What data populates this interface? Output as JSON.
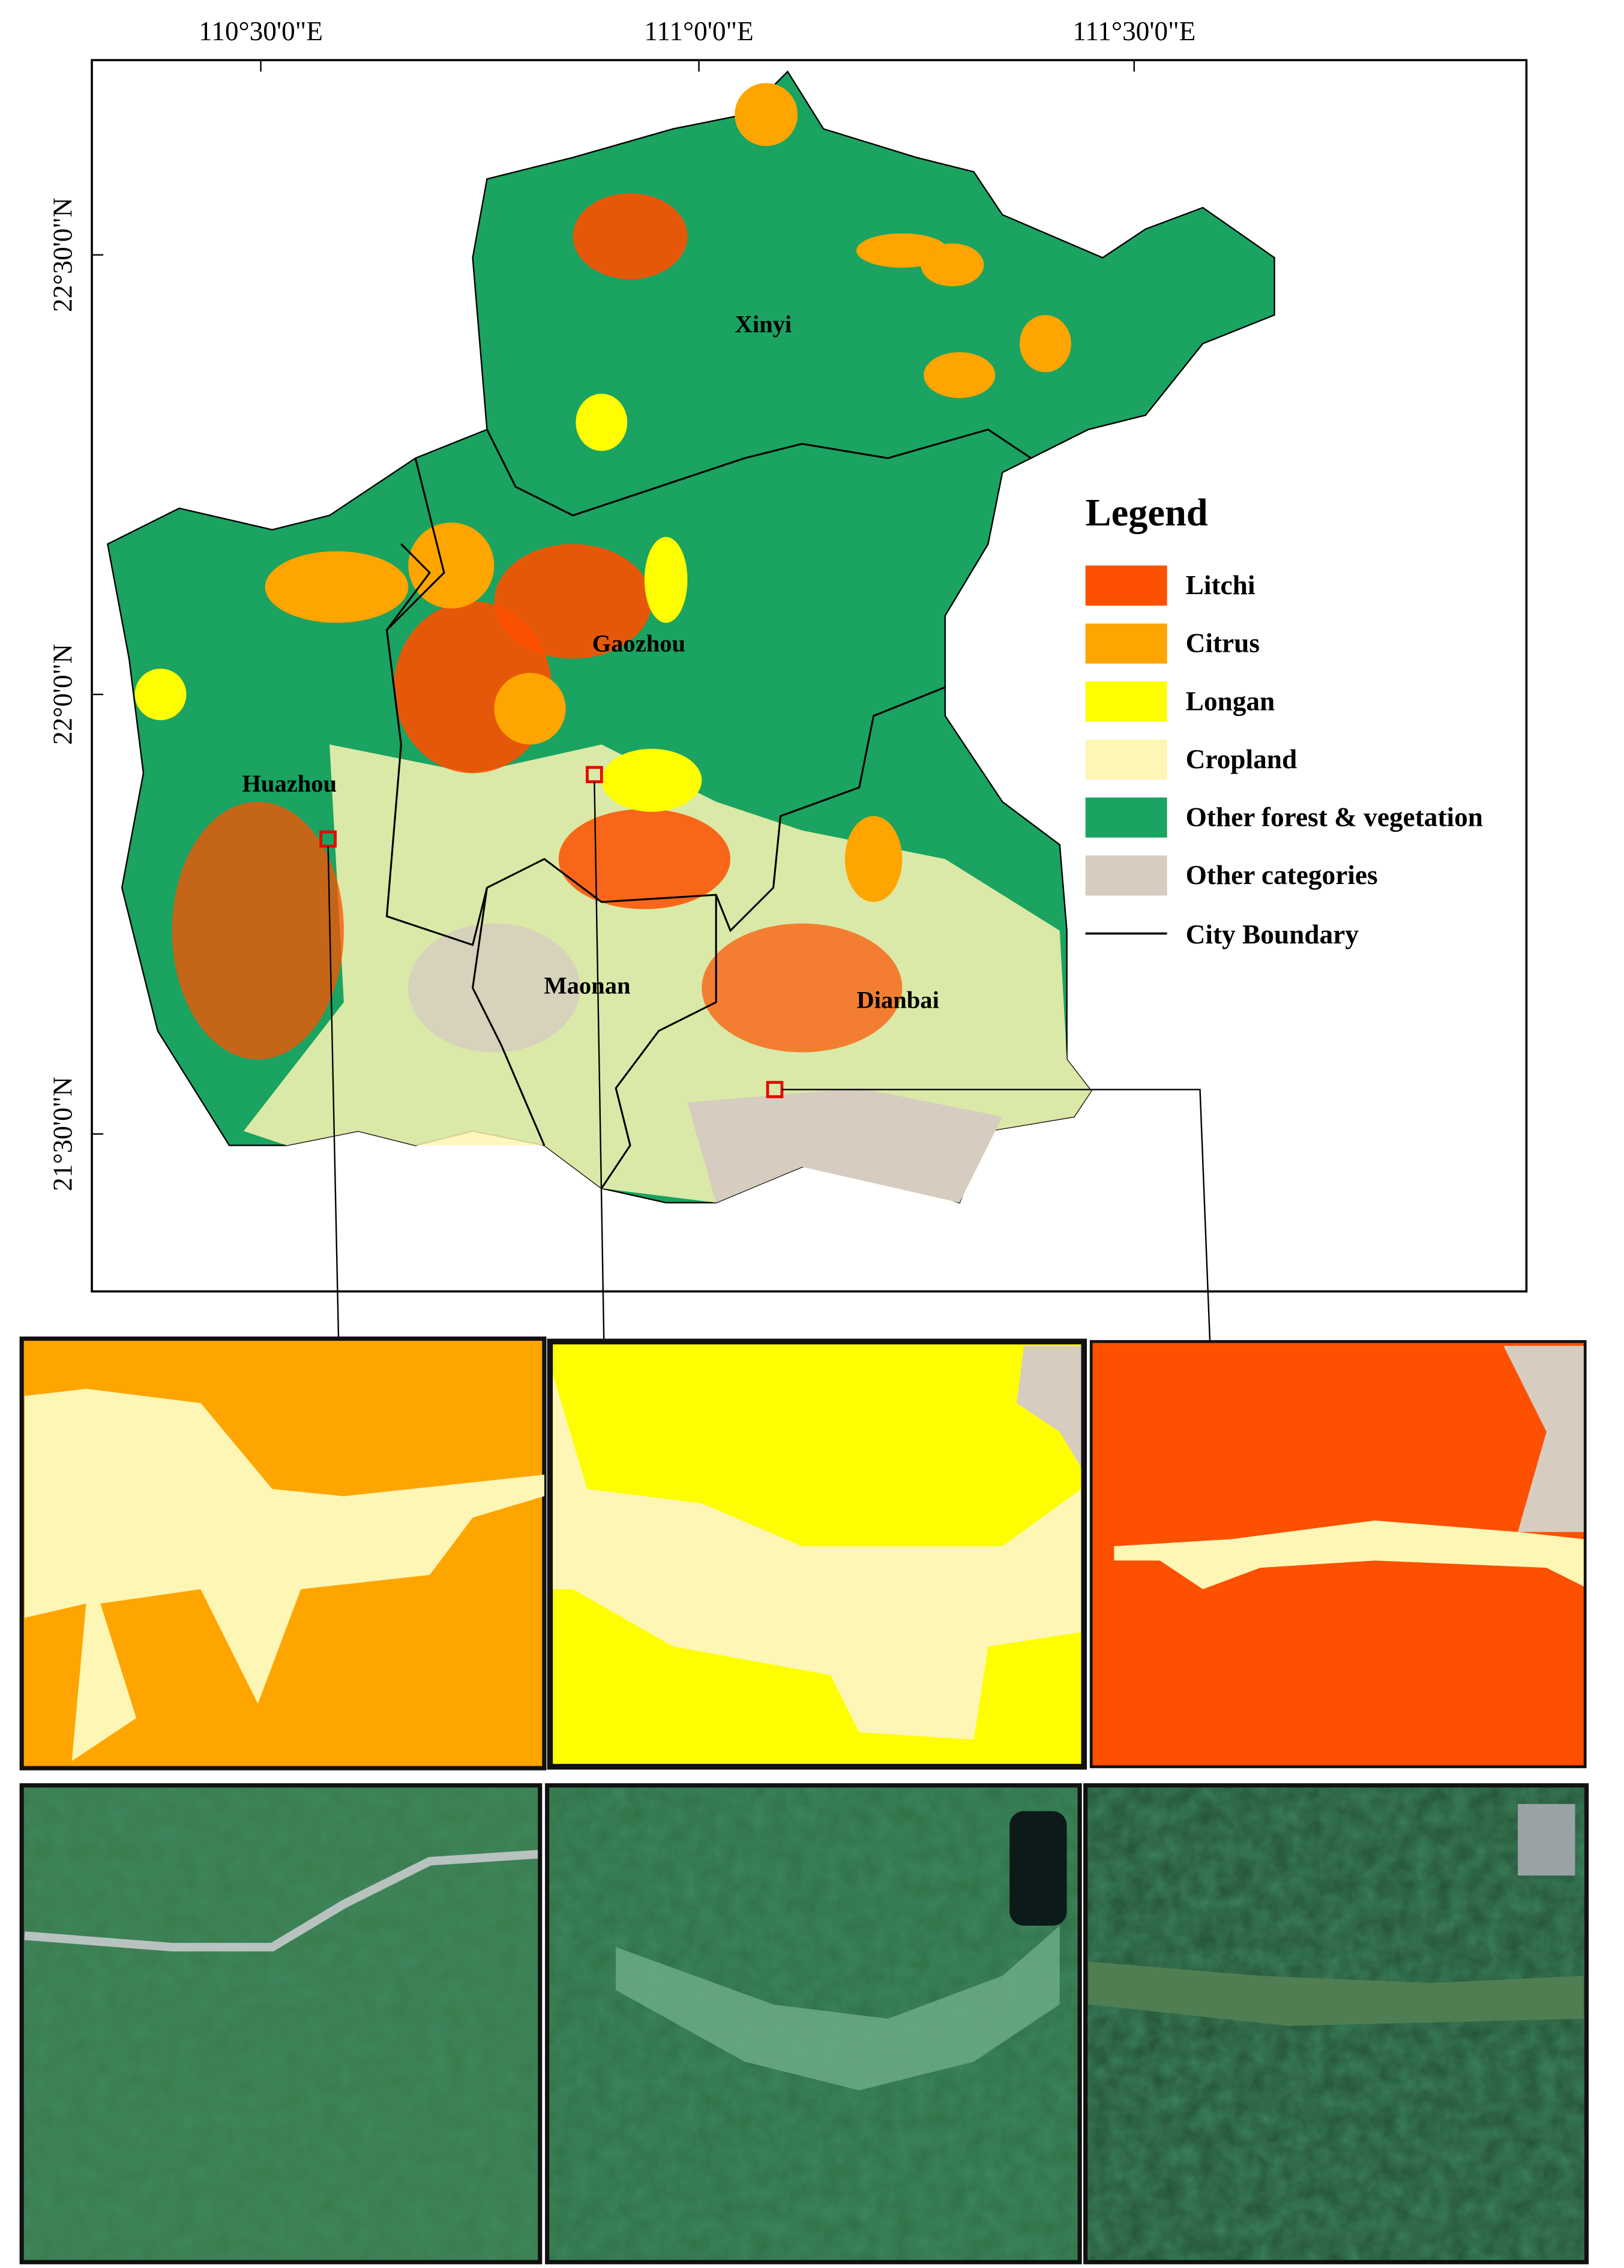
{
  "map": {
    "lon_labels": [
      "110°30'0\"E",
      "111°0'0\"E",
      "111°30'0\"E"
    ],
    "lat_labels": [
      "22°30'0\"N",
      "22°0'0\"N",
      "21°30'0\"N"
    ],
    "cities": [
      "Xinyi",
      "Gaozhou",
      "Huazhou",
      "Maonan",
      "Dianbai"
    ]
  },
  "legend": {
    "title": "Legend",
    "items": [
      {
        "label": "Litchi",
        "color": "#fd5000"
      },
      {
        "label": "Citrus",
        "color": "#fea500"
      },
      {
        "label": "Longan",
        "color": "#fefe00"
      },
      {
        "label": "Cropland",
        "color": "#fdf6b4"
      },
      {
        "label": "Other forest & vegetation",
        "color": "#1aa361"
      },
      {
        "label": "Other categories",
        "color": "#d6ccc0"
      }
    ],
    "boundary": {
      "label": "City Boundary",
      "color": "#000000"
    }
  }
}
